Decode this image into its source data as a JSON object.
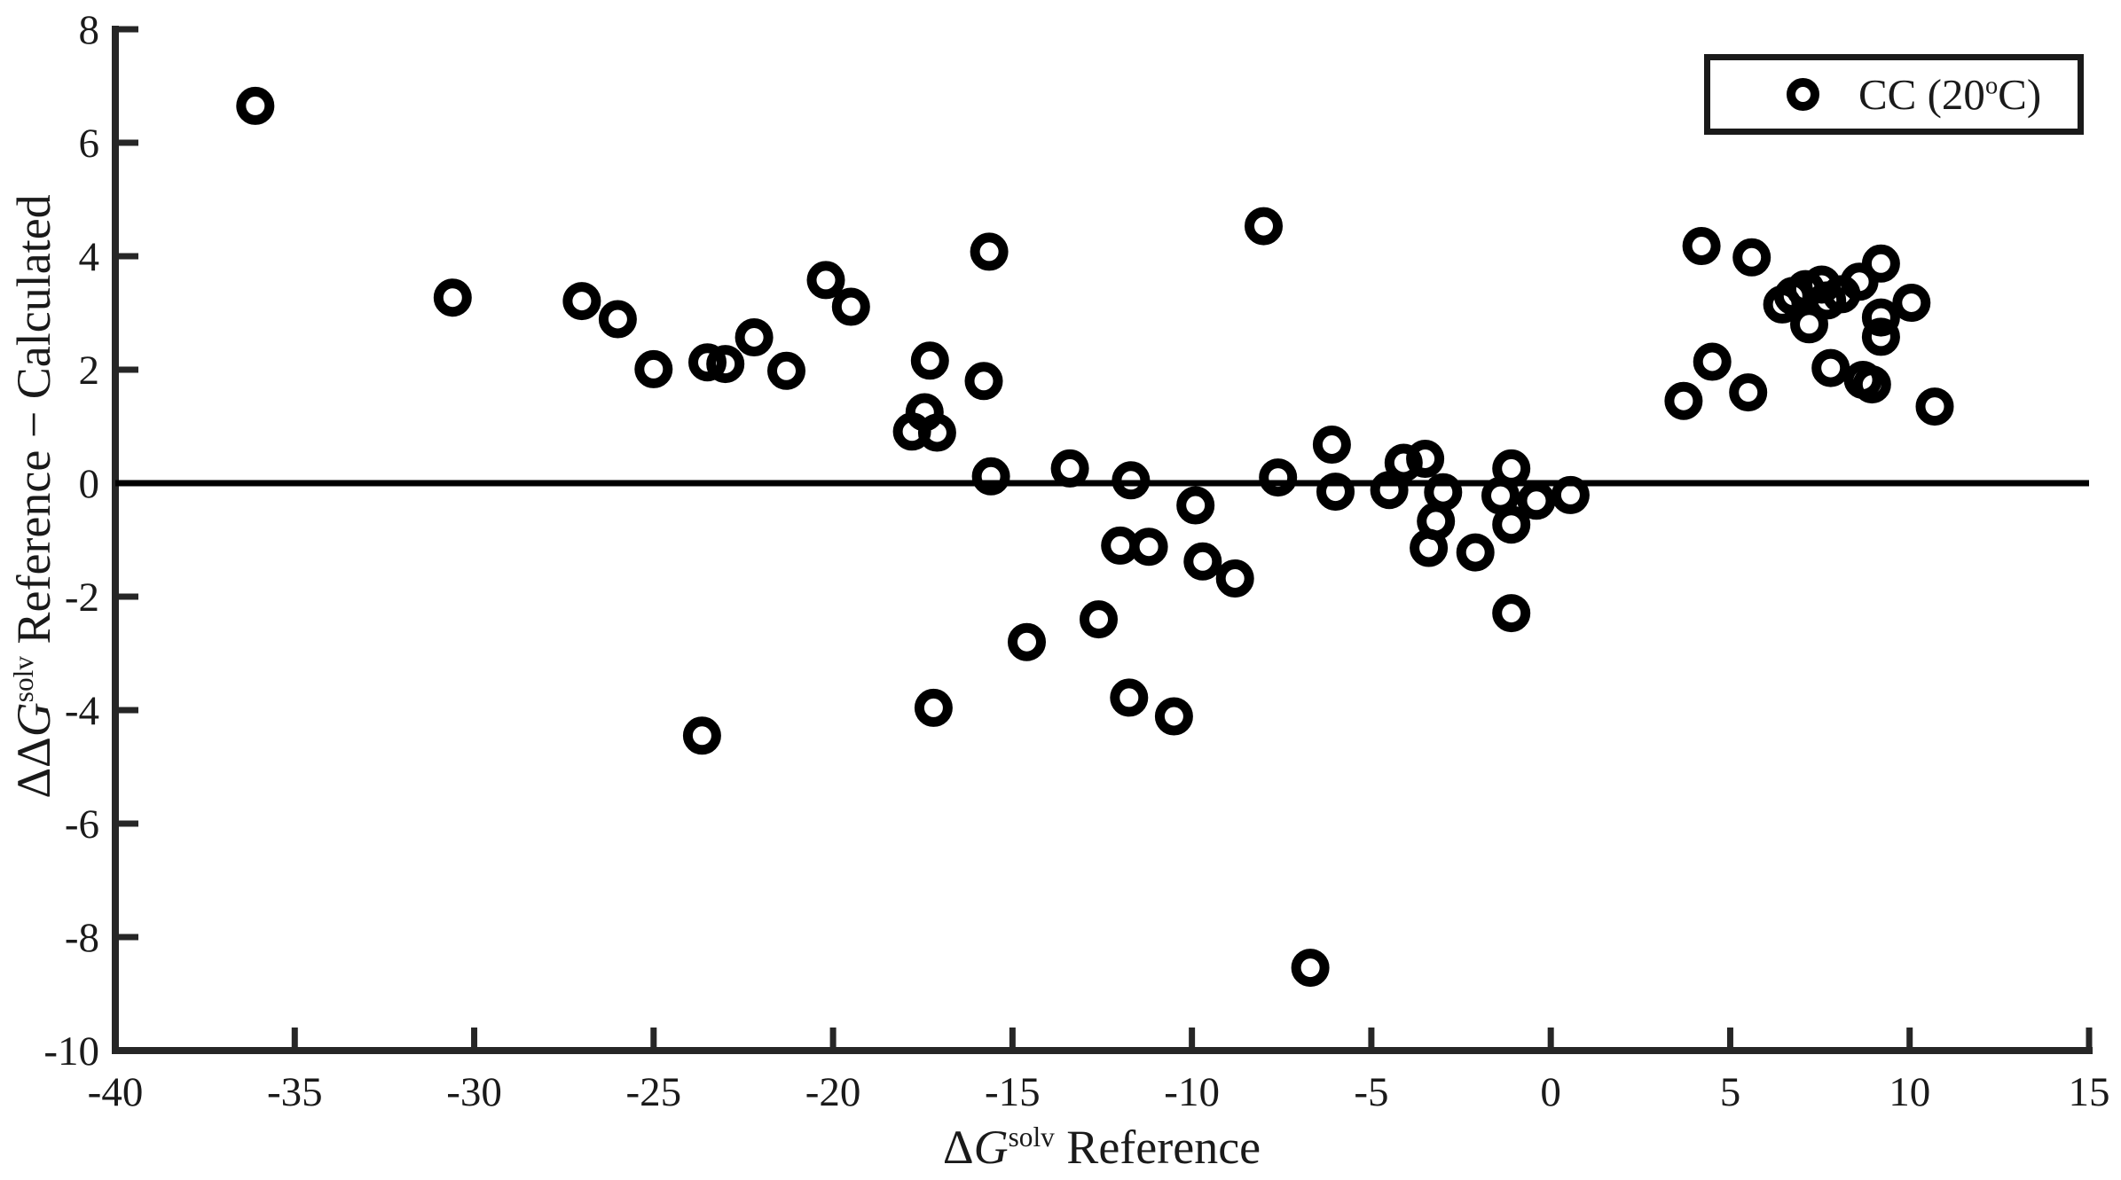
{
  "colors": {
    "background": "#ffffff",
    "data": "#000000",
    "axes": "#262626",
    "text": "#1a1a1a"
  },
  "chart_data": {
    "type": "scatter",
    "title": "",
    "xlabel": {
      "delta": "Δ",
      "var": "G",
      "sup": "solv",
      "suffix": " Reference"
    },
    "ylabel": {
      "delta": "ΔΔ",
      "var": "G",
      "sup": "solv",
      "suffix": " Reference − Calculated"
    },
    "xlim": [
      -40,
      15
    ],
    "ylim": [
      -10,
      8
    ],
    "xticks": [
      -40,
      -35,
      -30,
      -25,
      -20,
      -15,
      -10,
      -5,
      0,
      5,
      10,
      15
    ],
    "yticks": [
      8,
      6,
      4,
      2,
      0,
      -2,
      -4,
      -6,
      -8,
      -10
    ],
    "grid": false,
    "zero_line_y": 0,
    "legend": {
      "position": "top-right",
      "entries": [
        {
          "marker": "open-circle",
          "label_prefix": "CC (20",
          "label_sup": "o",
          "label_suffix": "C)"
        }
      ]
    },
    "series": [
      {
        "name": "CC (20 deg C)",
        "marker": "open-circle",
        "color": "#000000",
        "points": [
          [
            -36.1,
            6.65
          ],
          [
            -30.6,
            3.27
          ],
          [
            -27.0,
            3.21
          ],
          [
            -26.0,
            2.89
          ],
          [
            -25.0,
            2.01
          ],
          [
            -23.5,
            2.13
          ],
          [
            -23.0,
            2.1
          ],
          [
            -22.2,
            2.57
          ],
          [
            -21.3,
            1.98
          ],
          [
            -20.2,
            3.58
          ],
          [
            -19.5,
            3.11
          ],
          [
            -17.3,
            2.16
          ],
          [
            -17.45,
            1.25
          ],
          [
            -17.8,
            0.91
          ],
          [
            -17.1,
            0.89
          ],
          [
            -15.65,
            4.08
          ],
          [
            -15.8,
            1.8
          ],
          [
            -15.6,
            0.12
          ],
          [
            -13.4,
            0.26
          ],
          [
            -11.7,
            0.05
          ],
          [
            -9.9,
            -0.39
          ],
          [
            -12.0,
            -1.1
          ],
          [
            -11.2,
            -1.12
          ],
          [
            -9.7,
            -1.38
          ],
          [
            -8.8,
            -1.68
          ],
          [
            -12.6,
            -2.4
          ],
          [
            -14.6,
            -2.8
          ],
          [
            -11.75,
            -3.78
          ],
          [
            -10.5,
            -4.11
          ],
          [
            -8.0,
            4.53
          ],
          [
            -7.6,
            0.1
          ],
          [
            -6.1,
            0.68
          ],
          [
            -6.0,
            -0.15
          ],
          [
            -4.5,
            -0.12
          ],
          [
            -4.1,
            0.36
          ],
          [
            -3.5,
            0.43
          ],
          [
            -3.0,
            -0.16
          ],
          [
            -3.2,
            -0.67
          ],
          [
            -3.4,
            -1.14
          ],
          [
            -2.1,
            -1.22
          ],
          [
            -1.4,
            -0.22
          ],
          [
            -1.1,
            0.26
          ],
          [
            -0.4,
            -0.31
          ],
          [
            0.55,
            -0.21
          ],
          [
            -1.1,
            -0.73
          ],
          [
            -1.1,
            -2.29
          ],
          [
            -23.65,
            -4.45
          ],
          [
            -17.2,
            -3.96
          ],
          [
            -6.7,
            -8.54
          ],
          [
            4.2,
            4.18
          ],
          [
            5.6,
            3.98
          ],
          [
            3.7,
            1.45
          ],
          [
            4.5,
            2.14
          ],
          [
            5.5,
            1.6
          ],
          [
            6.45,
            3.15
          ],
          [
            6.75,
            3.3
          ],
          [
            7.1,
            3.42
          ],
          [
            7.55,
            3.5
          ],
          [
            7.7,
            3.22
          ],
          [
            8.1,
            3.33
          ],
          [
            8.6,
            3.55
          ],
          [
            9.2,
            3.87
          ],
          [
            7.2,
            2.8
          ],
          [
            9.2,
            2.92
          ],
          [
            9.2,
            2.58
          ],
          [
            10.05,
            3.18
          ],
          [
            7.8,
            2.03
          ],
          [
            8.7,
            1.82
          ],
          [
            8.95,
            1.74
          ],
          [
            10.7,
            1.35
          ]
        ]
      }
    ]
  }
}
